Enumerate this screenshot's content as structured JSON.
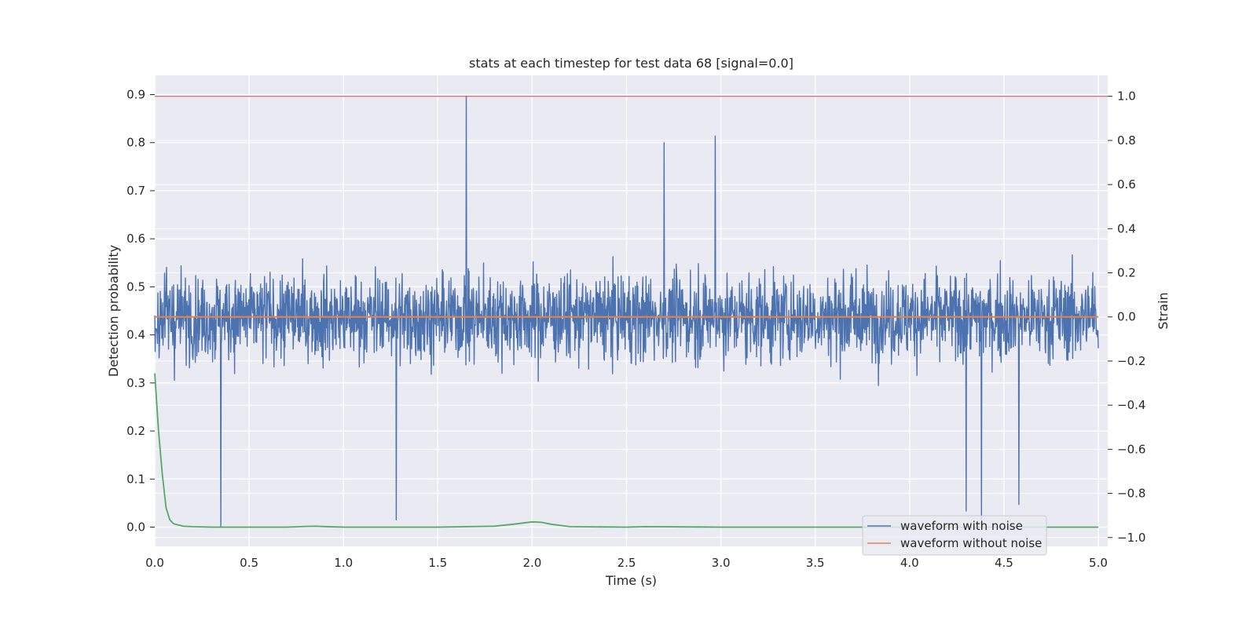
{
  "chart_data": {
    "type": "line",
    "title": "stats at each timestep for test data 68 [signal=0.0]",
    "xlabel": "Time (s)",
    "ylabel": "Detection probability",
    "ylabel_right": "Strain",
    "xlim": [
      0.0,
      5.05
    ],
    "ylim": [
      -0.04,
      0.94
    ],
    "ylim_right": [
      -1.04,
      1.095
    ],
    "xticks": [
      "0.0",
      "0.5",
      "1.0",
      "1.5",
      "2.0",
      "2.5",
      "3.0",
      "3.5",
      "4.0",
      "4.5",
      "5.0"
    ],
    "xtick_values": [
      0,
      0.5,
      1,
      1.5,
      2,
      2.5,
      3,
      3.5,
      4,
      4.5,
      5
    ],
    "yticks": [
      "0.0",
      "0.1",
      "0.2",
      "0.3",
      "0.4",
      "0.5",
      "0.6",
      "0.7",
      "0.8",
      "0.9"
    ],
    "ytick_values": [
      0,
      0.1,
      0.2,
      0.3,
      0.4,
      0.5,
      0.6,
      0.7,
      0.8,
      0.9
    ],
    "yticks_right": [
      "1.0",
      "0.8",
      "0.6",
      "0.4",
      "0.2",
      "0.0",
      "−0.2",
      "−0.4",
      "−0.6",
      "−0.8",
      "−1.0"
    ],
    "ytick_values_right": [
      1.0,
      0.8,
      0.6,
      0.4,
      0.2,
      0.0,
      -0.2,
      -0.4,
      -0.6,
      -0.8,
      -1.0
    ],
    "grid": true,
    "legend_position": "lower-right",
    "legend": [
      "waveform with noise",
      "waveform without noise"
    ],
    "series": [
      {
        "name": "waveform with noise",
        "axis": "right",
        "color": "#4c72b0",
        "x_range": [
          0.0,
          5.0
        ],
        "mean": 0.0,
        "amplitude_typical": 0.3,
        "peaks": [
          {
            "x": 1.65,
            "y": 1.0
          },
          {
            "x": 2.97,
            "y": 0.82
          },
          {
            "x": 2.7,
            "y": 0.79
          },
          {
            "x": 0.35,
            "y": -0.95
          },
          {
            "x": 4.3,
            "y": -0.88
          },
          {
            "x": 4.38,
            "y": -0.94
          },
          {
            "x": 1.28,
            "y": -0.92
          },
          {
            "x": 4.58,
            "y": -0.85
          }
        ]
      },
      {
        "name": "waveform without noise",
        "axis": "right",
        "color": "#dd8452",
        "x": [
          0.0,
          5.0
        ],
        "y": [
          0.0,
          0.0
        ]
      },
      {
        "name": "",
        "axis": "left",
        "color": "#55a868",
        "x": [
          0.0,
          0.02,
          0.04,
          0.06,
          0.08,
          0.1,
          0.15,
          0.2,
          0.3,
          0.5,
          0.7,
          0.8,
          0.85,
          0.9,
          1.0,
          1.5,
          1.8,
          1.9,
          2.0,
          2.05,
          2.1,
          2.2,
          2.5,
          2.6,
          3.0,
          4.0,
          4.9,
          5.0
        ],
        "y": [
          0.32,
          0.2,
          0.11,
          0.04,
          0.015,
          0.007,
          0.002,
          0.001,
          0.0,
          0.0,
          0.0,
          0.0015,
          0.002,
          0.0012,
          0.0,
          0.0,
          0.002,
          0.006,
          0.011,
          0.01,
          0.006,
          0.001,
          0.0,
          0.001,
          0.0,
          0.0,
          0.0,
          0.0
        ]
      },
      {
        "name": "",
        "axis": "right",
        "color": "#c44e52",
        "x": [
          0.0,
          5.05
        ],
        "y": [
          1.0,
          1.0
        ]
      }
    ]
  }
}
